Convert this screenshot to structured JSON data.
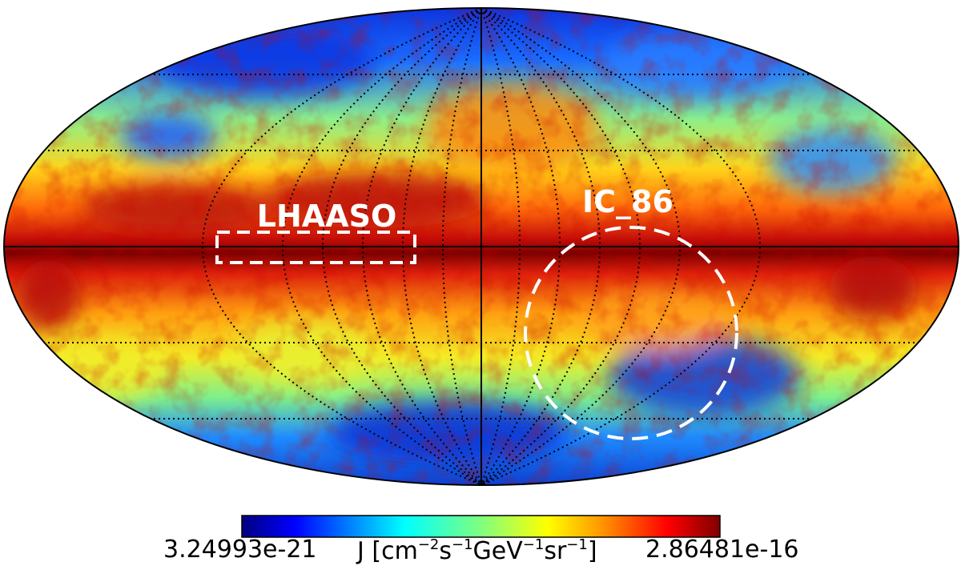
{
  "map": {
    "projection": "mollweide",
    "graticule": "dotted",
    "regions": [
      {
        "label": "LHAASO",
        "shape": "dashed-rectangle"
      },
      {
        "label": "IC_86",
        "shape": "dashed-circle"
      }
    ]
  },
  "colorbar": {
    "min_label": "3.24993e-21",
    "max_label": "2.86481e-16",
    "unit_label": {
      "J": "J [cm",
      "e1": "−2",
      "s": "s",
      "e2": "−1",
      "gev": "GeV",
      "e3": "−1",
      "sr": "sr",
      "e4": "−1",
      "close": "]"
    },
    "colormap": "jet",
    "colors": [
      "#00007f",
      "#0000ff",
      "#007fff",
      "#00ffff",
      "#7fff7f",
      "#ffff00",
      "#ff7f00",
      "#ff0000",
      "#7f0000"
    ]
  }
}
